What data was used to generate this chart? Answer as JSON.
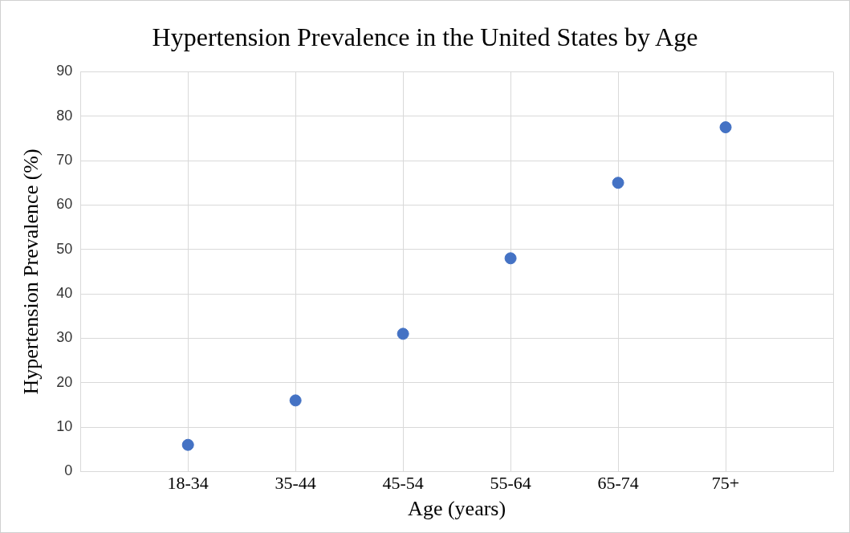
{
  "chart_data": {
    "type": "scatter",
    "title": "Hypertension Prevalence in the United States by Age",
    "xlabel": "Age (years)",
    "ylabel": "Hypertension Prevalence (%)",
    "categories": [
      "18-34",
      "35-44",
      "45-54",
      "55-64",
      "65-74",
      "75+"
    ],
    "series": [
      {
        "color": "#4472c4",
        "values": [
          6,
          16,
          31,
          48,
          65,
          77.5
        ]
      }
    ],
    "ylim": [
      0,
      90
    ],
    "yticks": [
      0,
      10,
      20,
      30,
      40,
      50,
      60,
      70,
      80,
      90
    ],
    "grid": true,
    "legend": false,
    "marker": "circle"
  }
}
